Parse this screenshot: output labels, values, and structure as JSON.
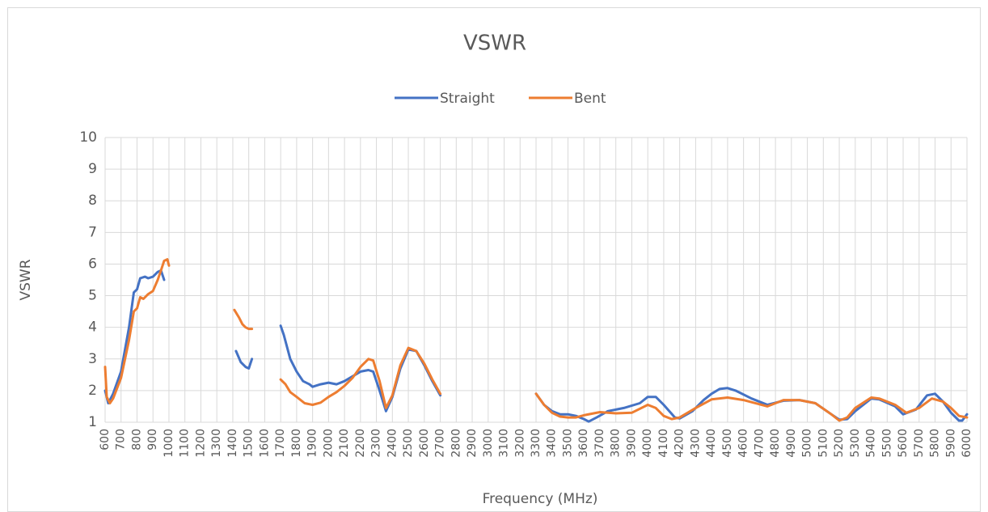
{
  "chart_data": {
    "type": "line",
    "title": "VSWR",
    "x_label": "Frequency (MHz)",
    "y_label": "VSWR",
    "xlim": [
      600,
      6000
    ],
    "xticks": [
      600,
      700,
      800,
      900,
      1000,
      1100,
      1200,
      1300,
      1400,
      1500,
      1600,
      1700,
      1800,
      1900,
      2000,
      2100,
      2200,
      2300,
      2400,
      2500,
      2600,
      2700,
      2800,
      2900,
      3000,
      3100,
      3200,
      3300,
      3400,
      3500,
      3600,
      3700,
      3800,
      3900,
      4000,
      4100,
      4200,
      4300,
      4400,
      4500,
      4600,
      4700,
      4800,
      4900,
      5000,
      5100,
      5200,
      5300,
      5400,
      5500,
      5600,
      5700,
      5800,
      5900,
      6000
    ],
    "ylim": [
      1,
      10
    ],
    "yticks": [
      1,
      2,
      3,
      4,
      5,
      6,
      7,
      8,
      9,
      10
    ],
    "grid": true,
    "legend": "top",
    "series": [
      {
        "name": "Straight",
        "color": "#4472c4",
        "x": [
          600,
          620,
          650,
          700,
          750,
          780,
          800,
          820,
          850,
          870,
          900,
          930,
          950,
          970,
          1200,
          1420,
          1450,
          1480,
          1500,
          1520,
          1600,
          1700,
          1720,
          1760,
          1800,
          1840,
          1880,
          1900,
          1950,
          2000,
          2050,
          2100,
          2150,
          2200,
          2250,
          2280,
          2320,
          2360,
          2400,
          2450,
          2500,
          2550,
          2600,
          2650,
          2700,
          3000,
          3300,
          3350,
          3400,
          3450,
          3500,
          3550,
          3600,
          3630,
          3680,
          3750,
          3850,
          3950,
          4000,
          4050,
          4100,
          4170,
          4200,
          4280,
          4350,
          4400,
          4450,
          4500,
          4550,
          4650,
          4750,
          4850,
          4950,
          5050,
          5150,
          5200,
          5250,
          5300,
          5400,
          5450,
          5550,
          5600,
          5680,
          5750,
          5800,
          5850,
          5900,
          5950,
          5970,
          6000
        ],
        "values": [
          2.0,
          1.6,
          1.9,
          2.6,
          4.0,
          5.1,
          5.2,
          5.55,
          5.6,
          5.55,
          5.6,
          5.75,
          5.8,
          5.5,
          null,
          3.25,
          2.9,
          2.75,
          2.7,
          3.0,
          null,
          4.05,
          3.75,
          3.0,
          2.6,
          2.3,
          2.2,
          2.12,
          2.2,
          2.25,
          2.2,
          2.3,
          2.45,
          2.6,
          2.65,
          2.6,
          2.0,
          1.35,
          1.8,
          2.7,
          3.3,
          3.25,
          2.8,
          2.3,
          1.85,
          null,
          1.9,
          1.55,
          1.35,
          1.25,
          1.25,
          1.2,
          1.1,
          1.02,
          1.15,
          1.35,
          1.45,
          1.6,
          1.8,
          1.8,
          1.55,
          1.15,
          1.12,
          1.35,
          1.7,
          1.9,
          2.05,
          2.08,
          2.0,
          1.75,
          1.55,
          1.68,
          1.7,
          1.6,
          1.25,
          1.08,
          1.1,
          1.35,
          1.75,
          1.72,
          1.5,
          1.25,
          1.4,
          1.85,
          1.9,
          1.65,
          1.3,
          1.05,
          1.05,
          1.25
        ]
      },
      {
        "name": "Bent",
        "color": "#ed7d31",
        "x": [
          600,
          610,
          630,
          650,
          700,
          750,
          780,
          800,
          820,
          840,
          870,
          900,
          930,
          950,
          970,
          990,
          1000,
          1200,
          1410,
          1440,
          1460,
          1480,
          1500,
          1520,
          1600,
          1700,
          1730,
          1760,
          1800,
          1850,
          1900,
          1950,
          2000,
          2050,
          2100,
          2150,
          2200,
          2250,
          2280,
          2320,
          2360,
          2400,
          2450,
          2500,
          2550,
          2600,
          2650,
          2700,
          3000,
          3300,
          3350,
          3400,
          3450,
          3500,
          3550,
          3600,
          3700,
          3800,
          3900,
          4000,
          4050,
          4100,
          4150,
          4200,
          4300,
          4400,
          4500,
          4600,
          4750,
          4850,
          4950,
          5050,
          5150,
          5200,
          5250,
          5300,
          5400,
          5450,
          5550,
          5620,
          5700,
          5780,
          5850,
          5900,
          5950,
          6000
        ],
        "values": [
          2.75,
          1.8,
          1.6,
          1.75,
          2.4,
          3.6,
          4.5,
          4.6,
          4.95,
          4.9,
          5.05,
          5.15,
          5.5,
          5.8,
          6.1,
          6.15,
          5.95,
          null,
          4.55,
          4.3,
          4.1,
          4.0,
          3.95,
          3.95,
          null,
          2.35,
          2.2,
          1.95,
          1.8,
          1.6,
          1.55,
          1.62,
          1.8,
          1.95,
          2.15,
          2.4,
          2.75,
          3.0,
          2.95,
          2.3,
          1.45,
          1.85,
          2.8,
          3.35,
          3.25,
          2.85,
          2.35,
          1.9,
          null,
          1.9,
          1.55,
          1.3,
          1.18,
          1.15,
          1.15,
          1.22,
          1.32,
          1.28,
          1.3,
          1.55,
          1.45,
          1.2,
          1.1,
          1.15,
          1.45,
          1.72,
          1.78,
          1.7,
          1.5,
          1.7,
          1.7,
          1.6,
          1.25,
          1.05,
          1.15,
          1.45,
          1.78,
          1.75,
          1.55,
          1.3,
          1.45,
          1.75,
          1.65,
          1.45,
          1.2,
          1.15
        ]
      }
    ]
  }
}
